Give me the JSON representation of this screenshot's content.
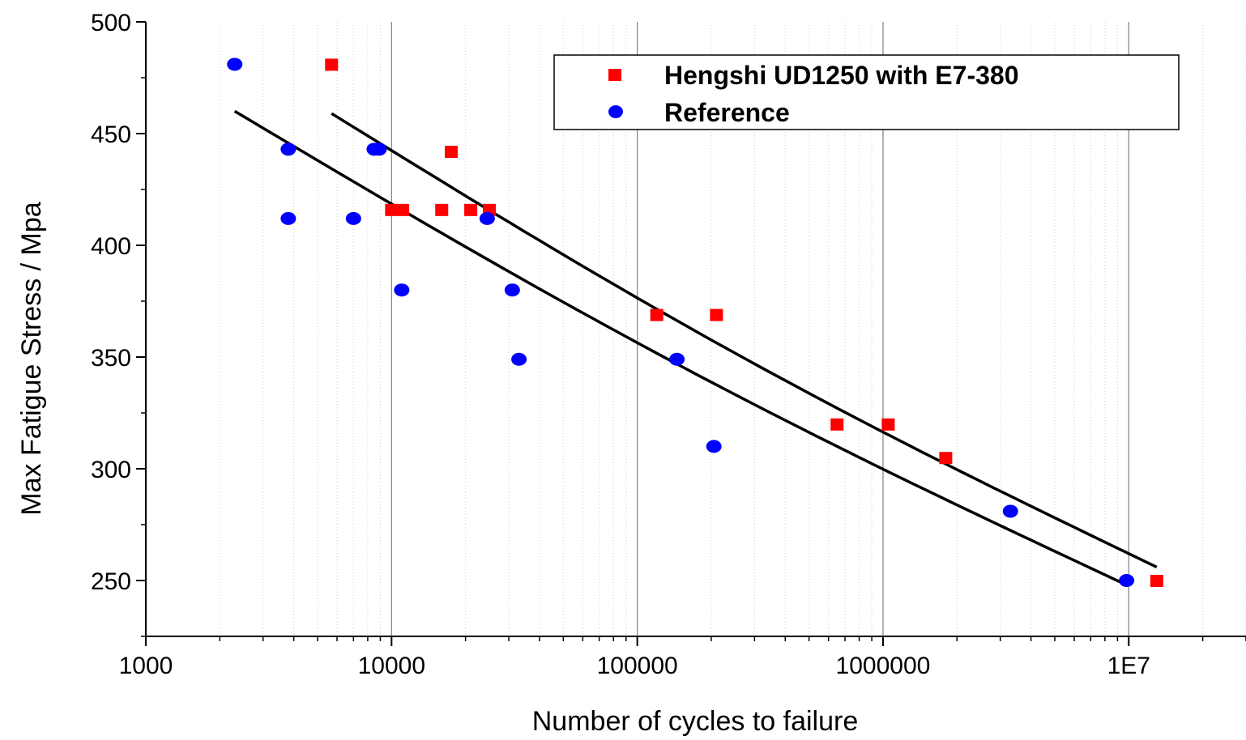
{
  "chart_data": {
    "type": "scatter",
    "title": "",
    "xlabel": "Number of cycles to failure",
    "ylabel": "Max Fatigue Stress / Mpa",
    "x_scale": "log",
    "xlim": [
      1000,
      30000000
    ],
    "ylim": [
      225,
      500
    ],
    "x_ticks": [
      1000,
      10000,
      100000,
      1000000,
      10000000
    ],
    "x_tick_labels": [
      "1000",
      "10000",
      "100000",
      "1000000",
      "1E7"
    ],
    "y_ticks": [
      250,
      300,
      350,
      400,
      450,
      500
    ],
    "y_tick_labels": [
      "250",
      "300",
      "350",
      "400",
      "450",
      "500"
    ],
    "grid": "vertical major and minor lines at x decades",
    "legend_position": "top-right",
    "series": [
      {
        "name": "Hengshi UD1250 with E7-380",
        "marker": "square",
        "color": "#ff0000",
        "points": [
          [
            5700,
            481
          ],
          [
            10000,
            416
          ],
          [
            11100,
            416
          ],
          [
            16000,
            416
          ],
          [
            17500,
            442
          ],
          [
            21000,
            416
          ],
          [
            25000,
            416
          ],
          [
            120000,
            369
          ],
          [
            210000,
            369
          ],
          [
            650000,
            320
          ],
          [
            1050000,
            320
          ],
          [
            1800000,
            305
          ],
          [
            13000000,
            250
          ]
        ],
        "fit": [
          [
            5700,
            459
          ],
          [
            13000000,
            256
          ]
        ]
      },
      {
        "name": "Reference",
        "marker": "circle",
        "color": "#0000ff",
        "points": [
          [
            2300,
            481
          ],
          [
            3800,
            443
          ],
          [
            3800,
            412
          ],
          [
            7000,
            412
          ],
          [
            8500,
            443
          ],
          [
            8900,
            443
          ],
          [
            11000,
            380
          ],
          [
            24500,
            412
          ],
          [
            31000,
            380
          ],
          [
            33000,
            349
          ],
          [
            145000,
            349
          ],
          [
            205000,
            310
          ],
          [
            3300000,
            281
          ],
          [
            9800000,
            250
          ]
        ],
        "fit": [
          [
            2300,
            460
          ],
          [
            9800000,
            248
          ]
        ]
      }
    ],
    "fit_line_color": "#000000"
  }
}
